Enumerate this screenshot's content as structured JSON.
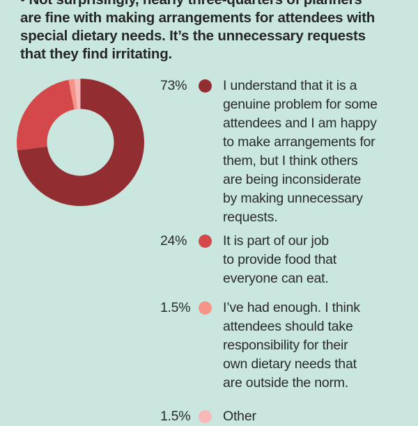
{
  "heading": {
    "lines": [
      "•  Not surprisingly, nearly three-quarters of planners",
      "are fine with making arrangements for attendees with",
      "special dietary needs. It’s the unnecessary requests",
      "that they find irritating."
    ]
  },
  "chart_data": {
    "type": "pie",
    "variant": "donut",
    "title": "",
    "slices": [
      {
        "label": "I understand that it is a genuine problem for some attendees and I am happy to make arrangements for them, but I think others are being inconsiderate by making unnecessary requests.",
        "value": 73,
        "display": "73%",
        "color": "#922E32"
      },
      {
        "label": "It is part of our job to provide food that everyone can eat.",
        "value": 24,
        "display": "24%",
        "color": "#D5484A"
      },
      {
        "label": "I’ve had enough. I think attendees should take responsibility for their own dietary needs that are outside the norm.",
        "value": 1.5,
        "display": "1.5%",
        "color": "#F59488"
      },
      {
        "label": "Other",
        "value": 1.5,
        "display": "1.5%",
        "color": "#F9B8B8"
      }
    ],
    "legend_position": "right"
  },
  "legend": {
    "rows": [
      {
        "pct": "73%",
        "lines": [
          "I understand that it is a",
          "genuine problem for some",
          "attendees and I am happy",
          "to make arrangements for",
          "them, but I think others",
          "are being inconsiderate",
          "by making unnecessary",
          "requests."
        ]
      },
      {
        "pct": "24%",
        "lines": [
          "It is part of our job",
          "to provide food that",
          "everyone can eat."
        ]
      },
      {
        "pct": "1.5%",
        "lines": [
          "I’ve had enough. I think",
          "attendees should take",
          "responsibility for their",
          "own dietary needs that",
          "are outside the norm."
        ]
      },
      {
        "pct": "1.5%",
        "lines": [
          "Other"
        ]
      }
    ]
  },
  "colors": {
    "background": "#C9E7DF",
    "text": "#2A2A2A"
  }
}
